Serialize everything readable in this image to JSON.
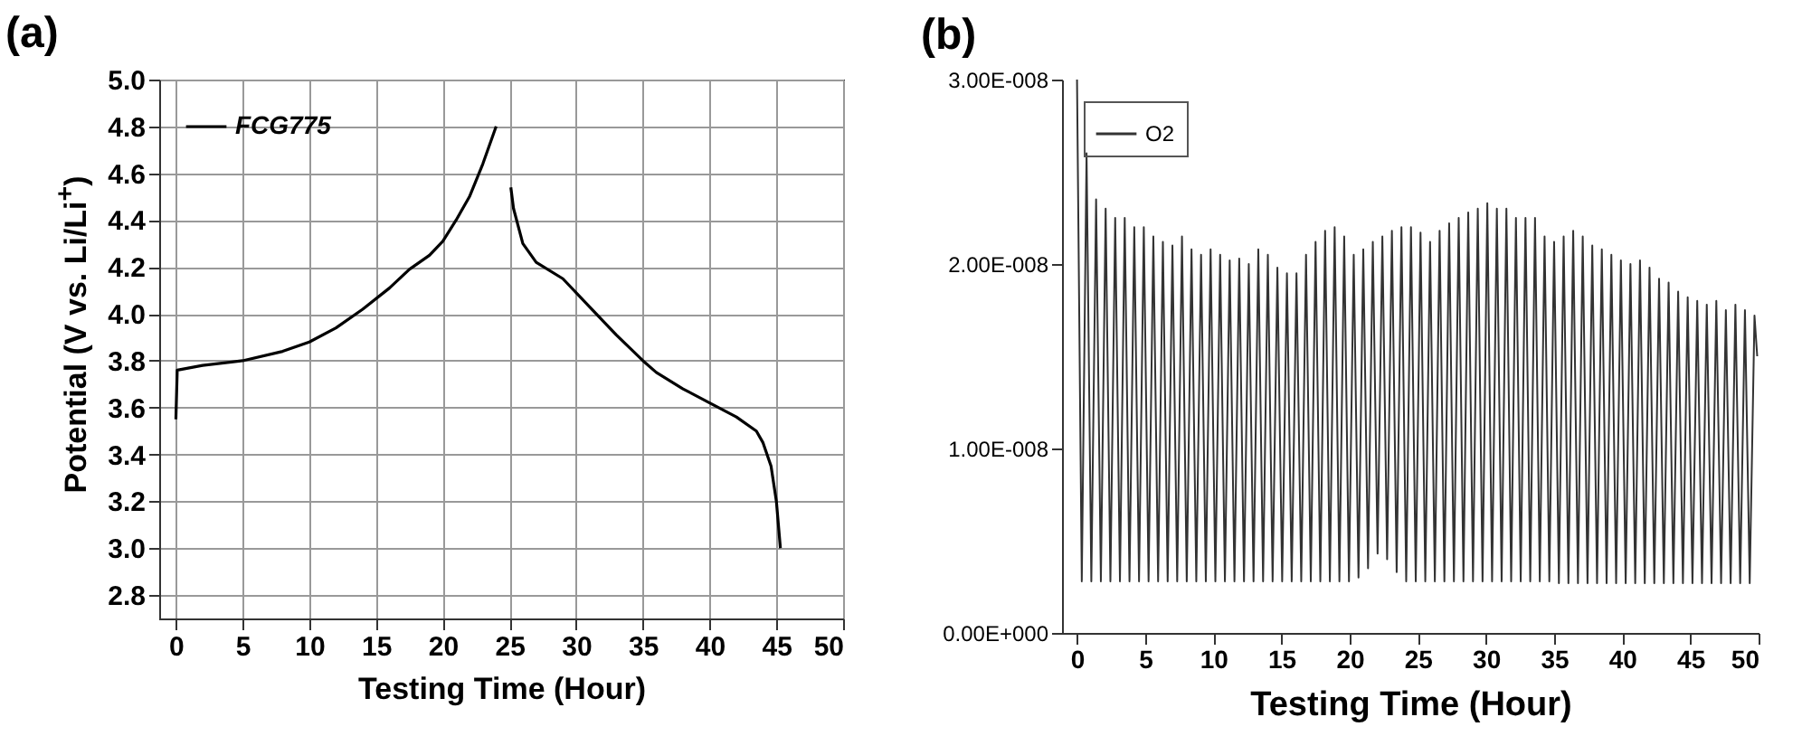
{
  "chart_data": [
    {
      "type": "line",
      "title": "(a)",
      "xlabel": "Testing Time (Hour)",
      "ylabel": "Potential (V vs. Li/Li$^{+}$)",
      "xlim": [
        -1.25,
        50
      ],
      "xticks": [
        0,
        5,
        10,
        15,
        20,
        25,
        30,
        35,
        40,
        45,
        50
      ],
      "ylim": [
        2.7,
        5.0
      ],
      "yticks": [
        {
          "value": 2.8,
          "label": "2.8"
        },
        {
          "value": 3.0,
          "label": "3.0"
        },
        {
          "value": 3.2,
          "label": "3.2"
        },
        {
          "value": 3.4,
          "label": "3.4"
        },
        {
          "value": 3.6,
          "label": "3.6"
        },
        {
          "value": 3.8,
          "label": "3.8"
        },
        {
          "value": 4.0,
          "label": "4.0"
        },
        {
          "value": 4.2,
          "label": "4.2"
        },
        {
          "value": 4.4,
          "label": "4.4"
        },
        {
          "value": 4.6,
          "label": "4.6"
        },
        {
          "value": 4.8,
          "label": "4.8"
        },
        {
          "value": 5.0,
          "label": "5.0"
        }
      ],
      "grid": true,
      "legend": "top left",
      "series": [
        {
          "name": "FCG775",
          "color": "#000000",
          "x": [
            0,
            0.1,
            2,
            5,
            8,
            10,
            12,
            14,
            16,
            17.5,
            19,
            20,
            21,
            22,
            23,
            24,
            24.5,
            25.1,
            25.3,
            26,
            27,
            29,
            31,
            33,
            35,
            36,
            38,
            40,
            42,
            43.5,
            44,
            44.6,
            45,
            45.3
          ],
          "values": [
            3.55,
            3.76,
            3.78,
            3.8,
            3.84,
            3.88,
            3.94,
            4.02,
            4.11,
            4.19,
            4.25,
            4.31,
            4.4,
            4.5,
            4.64,
            4.8,
            null,
            4.54,
            4.45,
            4.3,
            4.22,
            4.15,
            4.03,
            3.91,
            3.8,
            3.75,
            3.68,
            3.62,
            3.56,
            3.5,
            3.45,
            3.35,
            3.2,
            3.0
          ]
        }
      ]
    },
    {
      "type": "line",
      "title": "(b)",
      "xlabel": "Testing Time (Hour)",
      "xlim": [
        -1.1,
        50
      ],
      "xticks": [
        0,
        5,
        10,
        15,
        20,
        25,
        30,
        35,
        40,
        45,
        50
      ],
      "ylim": [
        0,
        3e-08
      ],
      "yticks": [
        {
          "value": 0,
          "label": "0.00E+000"
        },
        {
          "value": 1e-08,
          "label": "1.00E-008"
        },
        {
          "value": 2e-08,
          "label": "2.00E-008"
        },
        {
          "value": 3e-08,
          "label": "3.00E-008"
        }
      ],
      "legend": "top left",
      "series": [
        {
          "name": "O2",
          "color": "#333333",
          "x": [
            0,
            0.35,
            0.7,
            1.05,
            1.4,
            1.75,
            2.1,
            2.45,
            2.8,
            3.15,
            3.5,
            3.85,
            4.2,
            4.55,
            4.9,
            5.25,
            5.6,
            5.95,
            6.3,
            6.65,
            7,
            7.35,
            7.7,
            8.05,
            8.4,
            8.75,
            9.1,
            9.45,
            9.8,
            10.15,
            10.5,
            10.85,
            11.2,
            11.55,
            11.9,
            12.25,
            12.6,
            12.95,
            13.3,
            13.65,
            14,
            14.35,
            14.7,
            15.05,
            15.4,
            15.75,
            16.1,
            16.45,
            16.8,
            17.15,
            17.5,
            17.85,
            18.2,
            18.55,
            18.9,
            19.25,
            19.6,
            19.95,
            20.3,
            20.65,
            21,
            21.35,
            21.7,
            22.05,
            22.4,
            22.75,
            23.1,
            23.45,
            23.8,
            24.15,
            24.5,
            24.85,
            25.2,
            25.55,
            25.9,
            26.25,
            26.6,
            26.95,
            27.3,
            27.65,
            28,
            28.35,
            28.7,
            29.05,
            29.4,
            29.75,
            30.1,
            30.45,
            30.8,
            31.15,
            31.5,
            31.85,
            32.2,
            32.55,
            32.9,
            33.25,
            33.6,
            33.95,
            34.3,
            34.65,
            35,
            35.35,
            35.7,
            36.05,
            36.4,
            36.75,
            37.1,
            37.45,
            37.8,
            38.15,
            38.5,
            38.85,
            39.2,
            39.55,
            39.9,
            40.25,
            40.6,
            40.95,
            41.3,
            41.65,
            42,
            42.35,
            42.7,
            43.05,
            43.4,
            43.75,
            44.1,
            44.45,
            44.8,
            45.15,
            45.5,
            45.85,
            46.2,
            46.55,
            46.9,
            47.25,
            47.6,
            47.95,
            48.3,
            48.65,
            49,
            49.35,
            49.7,
            49.9
          ],
          "values": [
            3e-08,
            2.8e-09,
            2.6e-08,
            2.8e-09,
            2.35e-08,
            2.8e-09,
            2.3e-08,
            2.8e-09,
            2.25e-08,
            2.8e-09,
            2.25e-08,
            2.8e-09,
            2.2e-08,
            2.8e-09,
            2.2e-08,
            2.8e-09,
            2.15e-08,
            2.8e-09,
            2.12e-08,
            2.8e-09,
            2.1e-08,
            2.8e-09,
            2.15e-08,
            2.8e-09,
            2.08e-08,
            2.8e-09,
            2.05e-08,
            2.8e-09,
            2.08e-08,
            2.8e-09,
            2.05e-08,
            2.8e-09,
            2.02e-08,
            2.8e-09,
            2.03e-08,
            2.8e-09,
            2e-08,
            2.8e-09,
            2.08e-08,
            2.8e-09,
            2.05e-08,
            2.8e-09,
            1.98e-08,
            2.8e-09,
            1.95e-08,
            2.8e-09,
            1.95e-08,
            2.8e-09,
            2.05e-08,
            2.8e-09,
            2.12e-08,
            2.8e-09,
            2.18e-08,
            2.8e-09,
            2.2e-08,
            2.8e-09,
            2.15e-08,
            2.8e-09,
            2.05e-08,
            3e-09,
            2.08e-08,
            3.5e-09,
            2.12e-08,
            4.3e-09,
            2.15e-08,
            4e-09,
            2.18e-08,
            3.3e-09,
            2.2e-08,
            2.8e-09,
            2.2e-08,
            2.8e-09,
            2.17e-08,
            2.8e-09,
            2.12e-08,
            2.8e-09,
            2.18e-08,
            2.8e-09,
            2.22e-08,
            2.8e-09,
            2.25e-08,
            2.8e-09,
            2.28e-08,
            2.8e-09,
            2.3e-08,
            2.8e-09,
            2.33e-08,
            2.8e-09,
            2.3e-08,
            2.8e-09,
            2.3e-08,
            2.8e-09,
            2.25e-08,
            2.8e-09,
            2.25e-08,
            2.8e-09,
            2.25e-08,
            2.8e-09,
            2.15e-08,
            2.8e-09,
            2.12e-08,
            2.7e-09,
            2.15e-08,
            2.7e-09,
            2.18e-08,
            2.7e-09,
            2.15e-08,
            2.7e-09,
            2.1e-08,
            2.7e-09,
            2.08e-08,
            2.7e-09,
            2.05e-08,
            2.7e-09,
            2.02e-08,
            2.7e-09,
            2e-08,
            2.7e-09,
            2.02e-08,
            2.7e-09,
            1.98e-08,
            2.7e-09,
            1.92e-08,
            2.7e-09,
            1.9e-08,
            2.7e-09,
            1.85e-08,
            2.7e-09,
            1.82e-08,
            2.7e-09,
            1.8e-08,
            2.7e-09,
            1.78e-08,
            2.7e-09,
            1.8e-08,
            2.7e-09,
            1.75e-08,
            2.7e-09,
            1.78e-08,
            2.7e-09,
            1.75e-08,
            2.7e-09,
            1.72e-08,
            1.5e-08
          ]
        }
      ]
    }
  ]
}
